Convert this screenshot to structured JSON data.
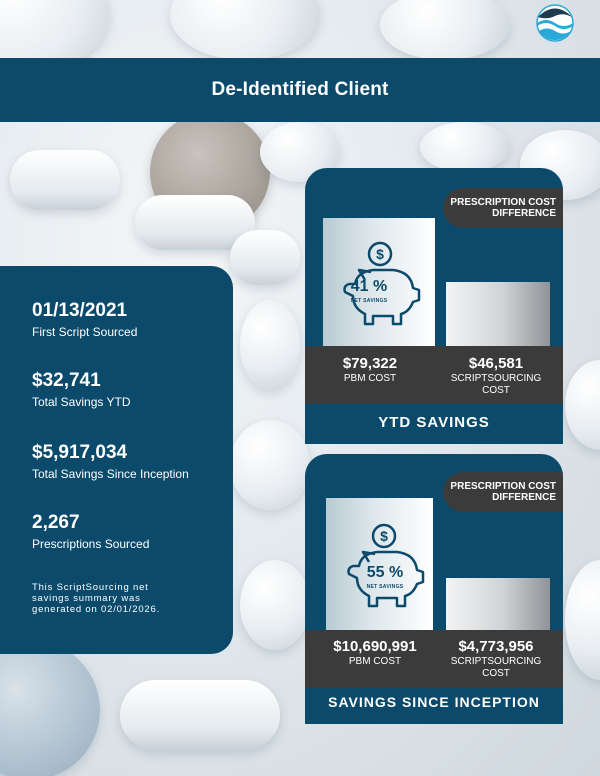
{
  "header": {
    "title": "De-Identified Client"
  },
  "logo": {
    "icon": "wave-logo-icon",
    "colors": [
      "#2aa8d8",
      "#1d3c4f"
    ]
  },
  "summary": {
    "first_script_date": "01/13/2021",
    "first_script_label": "First Script Sourced",
    "savings_ytd": "$32,741",
    "savings_ytd_label": "Total Savings YTD",
    "savings_inception": "$5,917,034",
    "savings_inception_label": "Total Savings Since Inception",
    "prescriptions": "2,267",
    "prescriptions_label": "Prescriptions Sourced",
    "note": "This ScriptSourcing net savings summary was generated on 02/01/2026."
  },
  "ytd_card": {
    "head_line1": "PRESCRIPTION COST",
    "head_line2": "DIFFERENCE",
    "percent": "41 %",
    "percent_sub": "NET SAVINGS",
    "pbm_value": "$79,322",
    "pbm_label": "PBM COST",
    "ss_value": "$46,581",
    "ss_label_line1": "SCRIPTSOURCING",
    "ss_label_line2": "COST",
    "footer": "YTD SAVINGS"
  },
  "inception_card": {
    "head_line1": "PRESCRIPTION COST",
    "head_line2": "DIFFERENCE",
    "percent": "55 %",
    "percent_sub": "NET SAVINGS",
    "pbm_value": "$10,690,991",
    "pbm_label": "PBM COST",
    "ss_value": "$4,773,956",
    "ss_label_line1": "SCRIPTSOURCING",
    "ss_label_line2": "COST",
    "footer": "SAVINGS SINCE INCEPTION"
  },
  "colors": {
    "brand_navy": "#0b4a6b",
    "dark_gray": "#3b3b3b",
    "white": "#ffffff"
  }
}
